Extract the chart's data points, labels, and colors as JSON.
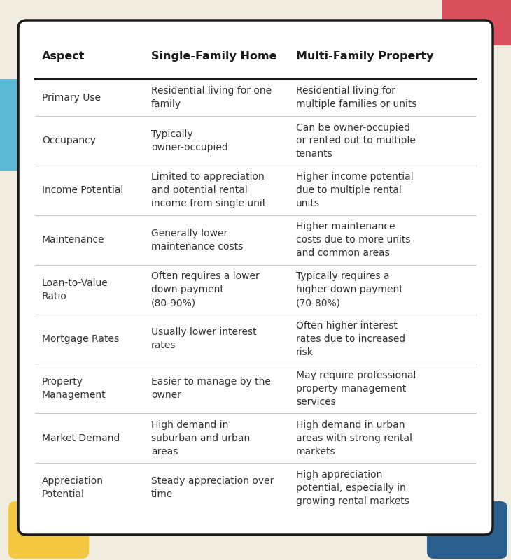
{
  "bg_color": "#f0ece0",
  "table_bg": "#ffffff",
  "header_text_color": "#1a1a1a",
  "cell_text_color": "#333333",
  "border_color": "#1a1a1a",
  "header_line_color": "#1a1a1a",
  "row_line_color": "#c8c8c8",
  "accent_colors": {
    "red": "#d94f5c",
    "blue": "#5bb8d4",
    "yellow": "#f5c842",
    "dark_blue": "#2b5f8e"
  },
  "headers": [
    "Aspect",
    "Single-Family Home",
    "Multi-Family Property"
  ],
  "rows": [
    {
      "aspect": "Primary Use",
      "single": "Residential living for one\nfamily",
      "multi": "Residential living for\nmultiple families or units"
    },
    {
      "aspect": "Occupancy",
      "single": "Typically\nowner-occupied",
      "multi": "Can be owner-occupied\nor rented out to multiple\ntenants"
    },
    {
      "aspect": "Income Potential",
      "single": "Limited to appreciation\nand potential rental\nincome from single unit",
      "multi": "Higher income potential\ndue to multiple rental\nunits"
    },
    {
      "aspect": "Maintenance",
      "single": "Generally lower\nmaintenance costs",
      "multi": "Higher maintenance\ncosts due to more units\nand common areas"
    },
    {
      "aspect": "Loan-to-Value\nRatio",
      "single": "Often requires a lower\ndown payment\n(80-90%)",
      "multi": "Typically requires a\nhigher down payment\n(70-80%)"
    },
    {
      "aspect": "Mortgage Rates",
      "single": "Usually lower interest\nrates",
      "multi": "Often higher interest\nrates due to increased\nrisk"
    },
    {
      "aspect": "Property\nManagement",
      "single": "Easier to manage by the\nowner",
      "multi": "May require professional\nproperty management\nservices"
    },
    {
      "aspect": "Market Demand",
      "single": "High demand in\nsuburban and urban\nareas",
      "multi": "High demand in urban\nareas with strong rental\nmarkets"
    },
    {
      "aspect": "Appreciation\nPotential",
      "single": "Steady appreciation over\ntime",
      "multi": "High appreciation\npotential, especially in\ngrowing rental markets"
    }
  ]
}
